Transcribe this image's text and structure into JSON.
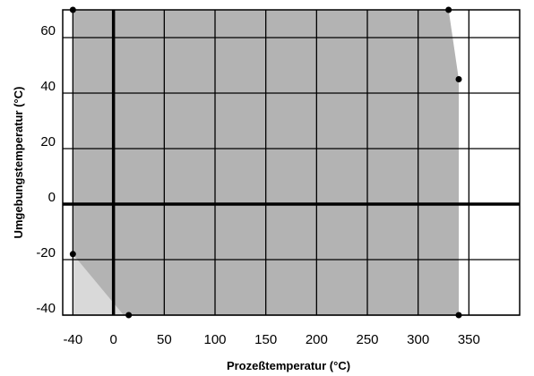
{
  "chart_data": {
    "type": "area",
    "title": "",
    "xlabel": "Prozeßtemperatur (°C)",
    "ylabel": "Umgebungstemperatur (°C)",
    "xlim": [
      -50,
      400
    ],
    "ylim": [
      -40,
      70
    ],
    "x_ticks": [
      -40,
      0,
      50,
      100,
      150,
      200,
      250,
      300,
      350
    ],
    "y_ticks": [
      -40,
      -20,
      0,
      20,
      40,
      60
    ],
    "x_tick_labels": [
      "-40",
      "0",
      "50",
      "100",
      "150",
      "200",
      "250",
      "300",
      "350"
    ],
    "y_tick_labels": [
      "-40",
      "-20",
      "0",
      "20",
      "40",
      "60"
    ],
    "grid": true,
    "regions": [
      {
        "fill": "#b3b3b3",
        "points": [
          [
            -40,
            70
          ],
          [
            330,
            70
          ],
          [
            340,
            45
          ],
          [
            340,
            -40
          ],
          [
            10,
            -40
          ],
          [
            -40,
            -40
          ]
        ]
      },
      {
        "fill": "#d9d9d9",
        "points": [
          [
            -40,
            -18
          ],
          [
            10,
            -40
          ],
          [
            -40,
            -40
          ]
        ]
      }
    ],
    "points": [
      {
        "x": -40,
        "y": 70
      },
      {
        "x": 330,
        "y": 70
      },
      {
        "x": 340,
        "y": 45
      },
      {
        "x": -40,
        "y": -18
      },
      {
        "x": 15,
        "y": -40
      },
      {
        "x": 340,
        "y": -40
      }
    ]
  }
}
